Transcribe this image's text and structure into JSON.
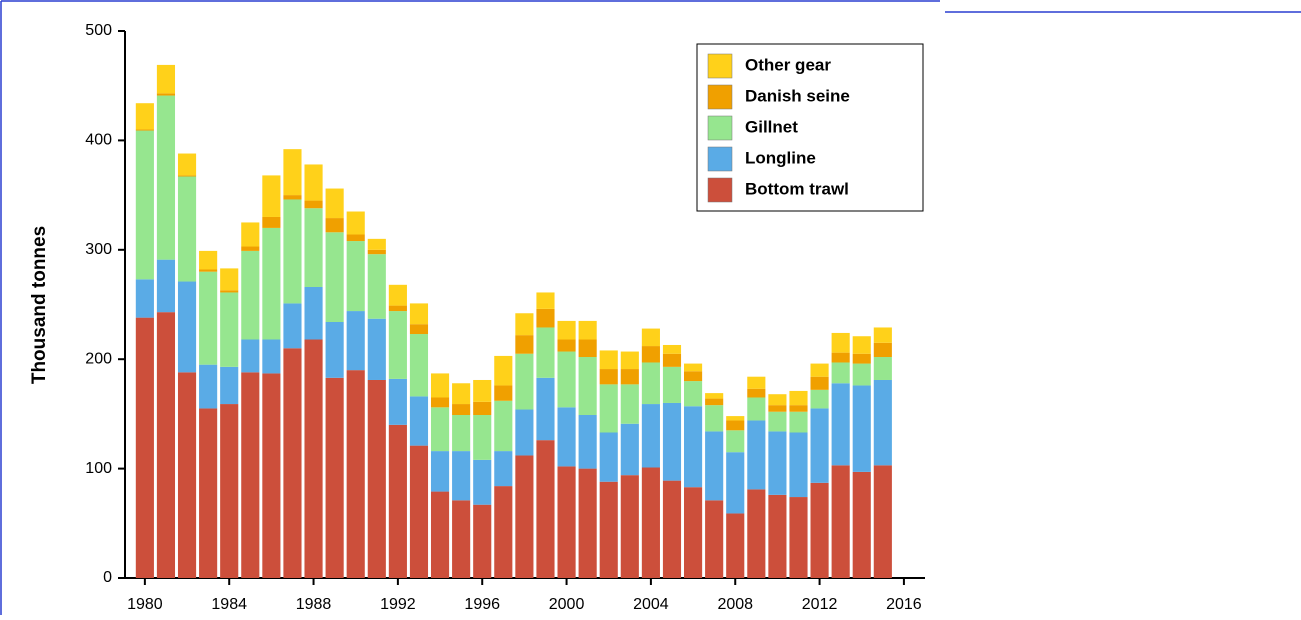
{
  "chart_data": {
    "type": "stacked_bar",
    "y_label": "Thousand tonnes",
    "x": [
      1980,
      1981,
      1982,
      1983,
      1984,
      1985,
      1986,
      1987,
      1988,
      1989,
      1990,
      1991,
      1992,
      1993,
      1994,
      1995,
      1996,
      1997,
      1998,
      1999,
      2000,
      2001,
      2002,
      2003,
      2004,
      2005,
      2006,
      2007,
      2008,
      2009,
      2010,
      2011,
      2012,
      2013,
      2014,
      2015
    ],
    "series": [
      {
        "name": "Bottom trawl",
        "color": "#cc4f3b",
        "values": [
          238,
          243,
          188,
          155,
          159,
          188,
          187,
          210,
          218,
          183,
          190,
          181,
          140,
          121,
          79,
          71,
          67,
          84,
          112,
          126,
          102,
          100,
          88,
          94,
          101,
          89,
          83,
          71,
          59,
          81,
          76,
          74,
          87,
          103,
          97,
          103
        ]
      },
      {
        "name": "Longline",
        "color": "#5aabe6",
        "values": [
          35,
          48,
          83,
          40,
          34,
          30,
          31,
          41,
          48,
          51,
          54,
          56,
          42,
          45,
          37,
          45,
          41,
          32,
          42,
          57,
          54,
          49,
          45,
          47,
          58,
          71,
          74,
          63,
          56,
          63,
          58,
          59,
          68,
          75,
          79,
          78
        ]
      },
      {
        "name": "Gillnet",
        "color": "#96e68f",
        "values": [
          136,
          150,
          96,
          85,
          68,
          81,
          102,
          95,
          72,
          82,
          64,
          59,
          62,
          57,
          40,
          33,
          41,
          46,
          51,
          46,
          51,
          53,
          44,
          36,
          38,
          33,
          23,
          24,
          20,
          21,
          18,
          19,
          17,
          19,
          20,
          21
        ]
      },
      {
        "name": "Danish seine",
        "color": "#f0a000",
        "values": [
          1,
          2,
          1,
          2,
          2,
          4,
          10,
          4,
          7,
          13,
          6,
          4,
          5,
          9,
          9,
          10,
          12,
          14,
          17,
          17,
          11,
          16,
          14,
          14,
          15,
          12,
          9,
          6,
          9,
          8,
          6,
          6,
          12,
          9,
          9,
          13
        ]
      },
      {
        "name": "Other gear",
        "color": "#ffd11a",
        "values": [
          24,
          26,
          20,
          17,
          20,
          22,
          38,
          42,
          33,
          27,
          21,
          10,
          19,
          19,
          22,
          19,
          20,
          27,
          20,
          15,
          17,
          17,
          17,
          16,
          16,
          8,
          7,
          5,
          4,
          11,
          10,
          13,
          12,
          18,
          16,
          14
        ]
      }
    ],
    "xlim": [
      1979.2,
      2017
    ],
    "xticks": [
      1980,
      1984,
      1988,
      1992,
      1996,
      2000,
      2004,
      2008,
      2012,
      2016
    ],
    "ylim": [
      0,
      500
    ],
    "yticks": [
      0,
      100,
      200,
      300,
      400,
      500
    ],
    "legend": "top-right",
    "grid": false
  }
}
